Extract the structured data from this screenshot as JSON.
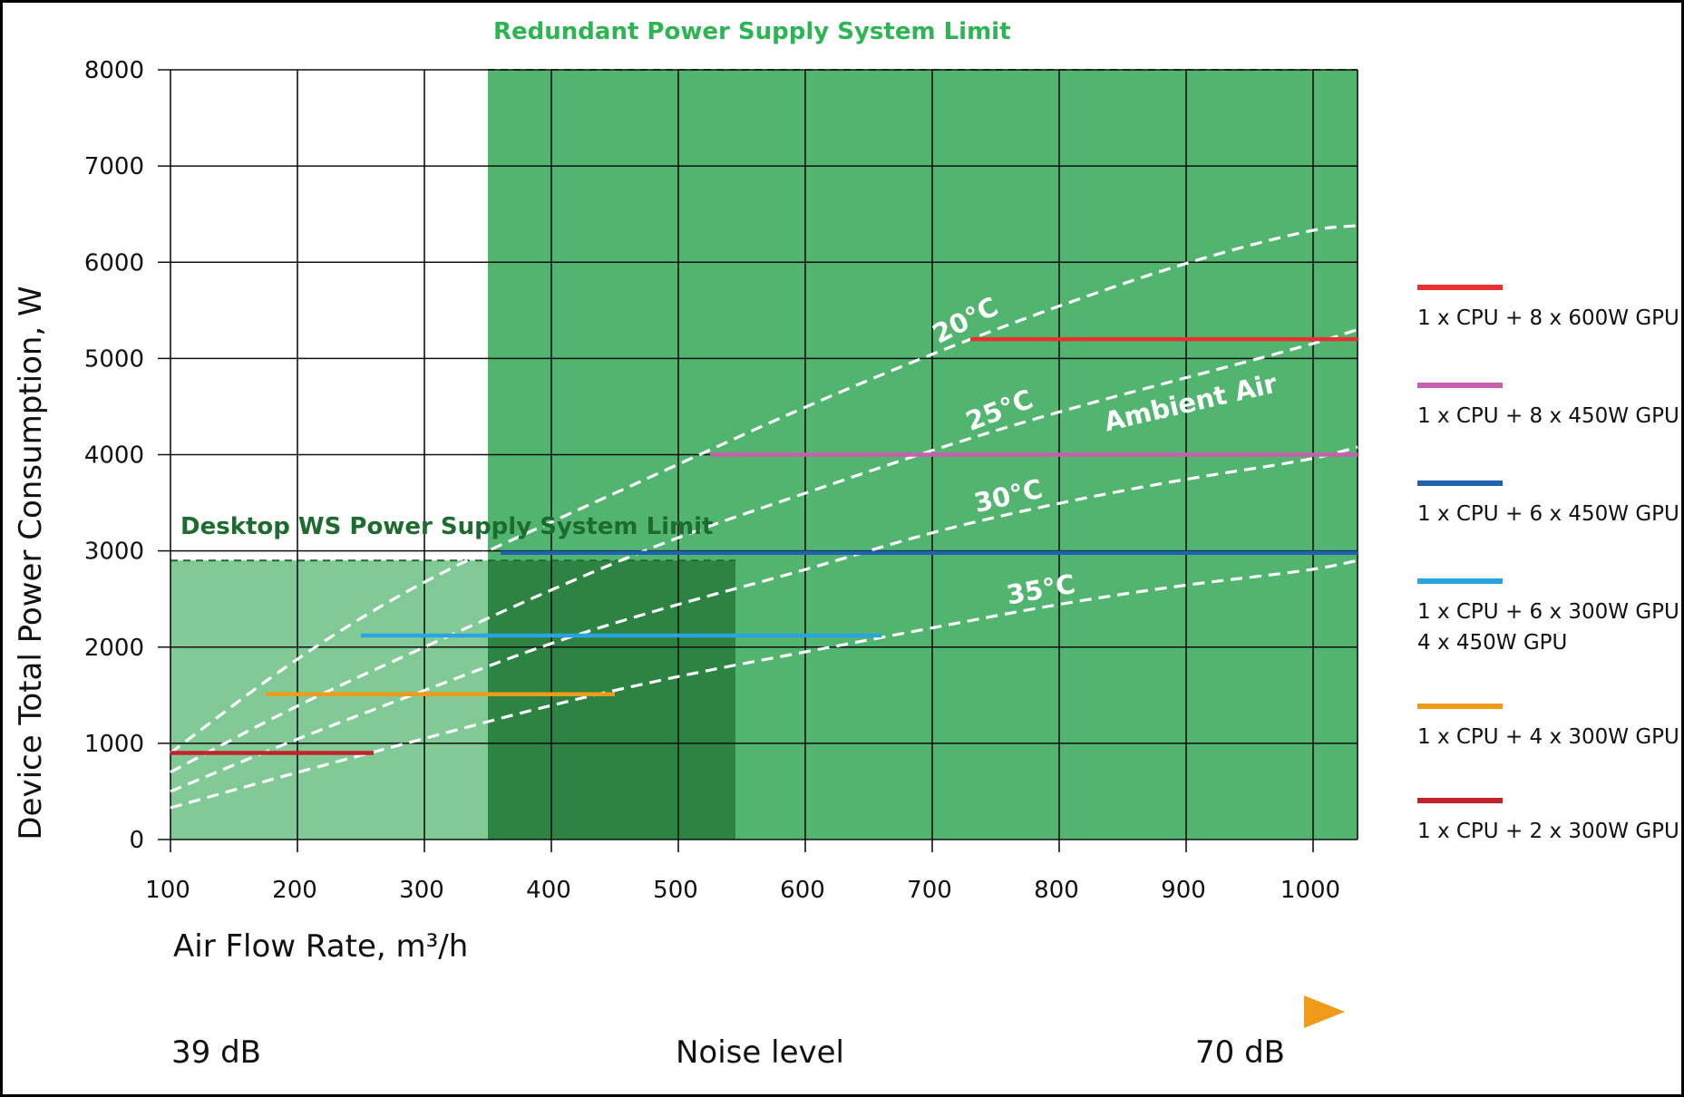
{
  "chart_data": {
    "type": "line",
    "xlabel": "Air Flow Rate, m³/h",
    "ylabel": "Device Total Power Consumption, W",
    "xlim": [
      100,
      1035
    ],
    "ylim": [
      0,
      8000
    ],
    "x_ticks": [
      "100",
      "200",
      "300",
      "400",
      "500",
      "600",
      "700",
      "800",
      "900",
      "1000"
    ],
    "y_ticks": [
      "0",
      "1000",
      "2000",
      "3000",
      "4000",
      "5000",
      "6000",
      "7000",
      "8000"
    ],
    "grid": true,
    "legend_position": "right",
    "regions": {
      "redundant": {
        "label": "Redundant Power Supply System Limit",
        "x_range": [
          350,
          1035
        ],
        "y_max": 8000,
        "color": "#52b56f"
      },
      "desktop": {
        "label": "Desktop WS Power Supply System Limit",
        "x_range": [
          100,
          545
        ],
        "y_max": 2900,
        "color": "#81c995"
      },
      "overlap_color": "#2d8442"
    },
    "curves_label": "Ambient Air",
    "curves": [
      {
        "name": "20°C",
        "points": [
          [
            100,
            900
          ],
          [
            200,
            1900
          ],
          [
            300,
            2700
          ],
          [
            400,
            3300
          ],
          [
            500,
            3900
          ],
          [
            600,
            4500
          ],
          [
            700,
            5050
          ],
          [
            800,
            5550
          ],
          [
            900,
            6000
          ],
          [
            1000,
            6350
          ],
          [
            1035,
            6380
          ]
        ]
      },
      {
        "name": "25°C",
        "points": [
          [
            100,
            700
          ],
          [
            200,
            1400
          ],
          [
            300,
            2000
          ],
          [
            400,
            2600
          ],
          [
            500,
            3150
          ],
          [
            600,
            3600
          ],
          [
            700,
            4050
          ],
          [
            800,
            4450
          ],
          [
            900,
            4800
          ],
          [
            1000,
            5150
          ],
          [
            1035,
            5300
          ]
        ]
      },
      {
        "name": "30°C",
        "points": [
          [
            100,
            500
          ],
          [
            200,
            1050
          ],
          [
            300,
            1550
          ],
          [
            400,
            2050
          ],
          [
            500,
            2450
          ],
          [
            600,
            2800
          ],
          [
            700,
            3200
          ],
          [
            800,
            3500
          ],
          [
            900,
            3750
          ],
          [
            1000,
            3950
          ],
          [
            1035,
            4080
          ]
        ]
      },
      {
        "name": "35°C",
        "points": [
          [
            100,
            330
          ],
          [
            200,
            700
          ],
          [
            300,
            1050
          ],
          [
            400,
            1400
          ],
          [
            500,
            1700
          ],
          [
            600,
            1950
          ],
          [
            700,
            2200
          ],
          [
            800,
            2450
          ],
          [
            900,
            2650
          ],
          [
            1000,
            2800
          ],
          [
            1035,
            2900
          ]
        ]
      }
    ],
    "series": [
      {
        "name": "1 x CPU + 8 x 600W GPU",
        "color": "#e8302e",
        "x_start": 730,
        "x_end": 1035,
        "y": 5200
      },
      {
        "name": "1 x CPU + 8 x 450W GPU",
        "color": "#c85fae",
        "x_start": 525,
        "x_end": 1035,
        "y": 4000
      },
      {
        "name": "1 x CPU + 6 x 450W GPU",
        "color": "#1e63b0",
        "x_start": 360,
        "x_end": 1035,
        "y": 2980
      },
      {
        "name_lines": [
          "1 x CPU + 6 x 300W GPU /",
          "4 x 450W GPU"
        ],
        "color": "#2aa3df",
        "x_start": 250,
        "x_end": 660,
        "y": 2120
      },
      {
        "name": "1 x CPU + 4 x 300W GPU",
        "color": "#f09a1a",
        "x_start": 175,
        "x_end": 450,
        "y": 1510
      },
      {
        "name": "1 x CPU + 2 x 300W GPU",
        "color": "#c22229",
        "x_start": 100,
        "x_end": 260,
        "y": 900
      }
    ],
    "noise": {
      "left": "39 dB",
      "center": "Noise level",
      "right": "70 dB"
    }
  }
}
